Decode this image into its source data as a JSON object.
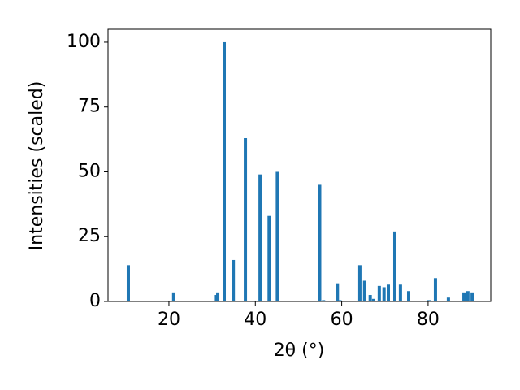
{
  "chart_data": {
    "type": "bar",
    "x_label": "2θ (°)",
    "y_label": "Intensities (scaled)",
    "x": [
      10.6,
      21.1,
      31.0,
      31.3,
      32.8,
      34.9,
      37.7,
      41.1,
      43.2,
      45.1,
      54.9,
      55.8,
      59.0,
      59.6,
      64.2,
      65.3,
      66.6,
      67.4,
      68.7,
      69.8,
      70.8,
      72.3,
      73.6,
      75.5,
      80.2,
      81.7,
      84.7,
      88.3,
      89.2,
      90.2
    ],
    "values": [
      14,
      3.5,
      2.5,
      3.5,
      100,
      16,
      63,
      49,
      33,
      50,
      45,
      0.5,
      7,
      0.5,
      14,
      8,
      2.5,
      1,
      6,
      5.5,
      6.5,
      27,
      6.5,
      4,
      0.5,
      9,
      1.5,
      3.5,
      4,
      3.5
    ],
    "color": "#1f77b4",
    "xlim": [
      5.9,
      94.5
    ],
    "xticks": [
      20,
      40,
      60,
      80
    ],
    "ylim": [
      0,
      105
    ],
    "yticks": [
      0,
      25,
      50,
      75,
      100
    ],
    "grid": false
  }
}
